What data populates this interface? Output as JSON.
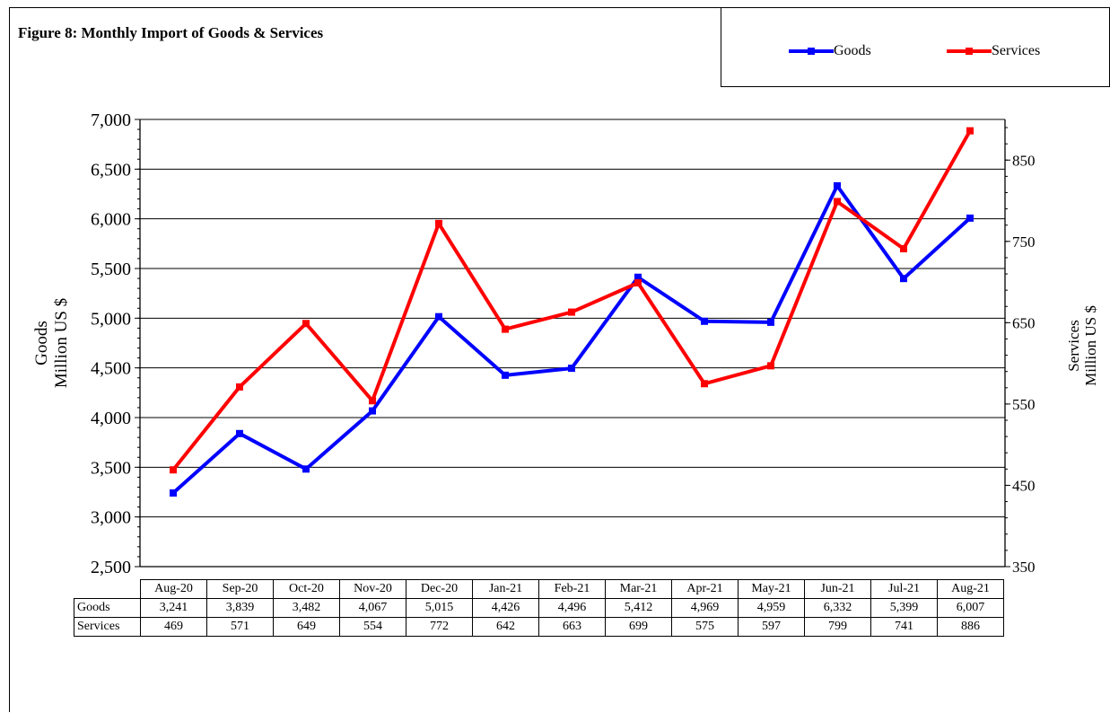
{
  "title": "Figure 8: Monthly Import of Goods & Services",
  "legend": {
    "goods": "Goods",
    "services": "Services"
  },
  "table": {
    "row_labels": [
      "Goods",
      "Services"
    ]
  },
  "colors": {
    "goods": "#0000ff",
    "services": "#ff0000"
  },
  "chart_data": {
    "type": "line",
    "title": "Figure 8: Monthly Import of Goods & Services",
    "categories": [
      "Aug-20",
      "Sep-20",
      "Oct-20",
      "Nov-20",
      "Dec-20",
      "Jan-21",
      "Feb-21",
      "Mar-21",
      "Apr-21",
      "May-21",
      "Jun-21",
      "Jul-21",
      "Aug-21"
    ],
    "series": [
      {
        "name": "Goods",
        "axis": "left",
        "color": "#0000ff",
        "values": [
          3241,
          3839,
          3482,
          4067,
          5015,
          4426,
          4496,
          5412,
          4969,
          4959,
          6332,
          5399,
          6007
        ],
        "labels": [
          "3,241",
          "3,839",
          "3,482",
          "4,067",
          "5,015",
          "4,426",
          "4,496",
          "5,412",
          "4,969",
          "4,959",
          "6,332",
          "5,399",
          "6,007"
        ]
      },
      {
        "name": "Services",
        "axis": "right",
        "color": "#ff0000",
        "values": [
          469,
          571,
          649,
          554,
          772,
          642,
          663,
          699,
          575,
          597,
          799,
          741,
          886
        ],
        "labels": [
          "469",
          "571",
          "649",
          "554",
          "772",
          "642",
          "663",
          "699",
          "575",
          "597",
          "799",
          "741",
          "886"
        ]
      }
    ],
    "y_left": {
      "label_lines": [
        "Goods",
        "Million US $"
      ],
      "ylim": [
        2500,
        7000
      ],
      "ticks": [
        2500,
        3000,
        3500,
        4000,
        4500,
        5000,
        5500,
        6000,
        6500,
        7000
      ],
      "tick_labels": [
        "2,500",
        "3,000",
        "3,500",
        "4,000",
        "4,500",
        "5,000",
        "5,500",
        "6,000",
        "6,500",
        "7,000"
      ]
    },
    "y_right": {
      "label_lines": [
        "Services",
        "Million US $"
      ],
      "ylim": [
        350,
        900
      ],
      "ticks": [
        350,
        450,
        550,
        650,
        750,
        850
      ],
      "tick_labels": [
        "350",
        "450",
        "550",
        "650",
        "750",
        "850"
      ]
    },
    "grid": true,
    "legend_position": "top-right"
  }
}
